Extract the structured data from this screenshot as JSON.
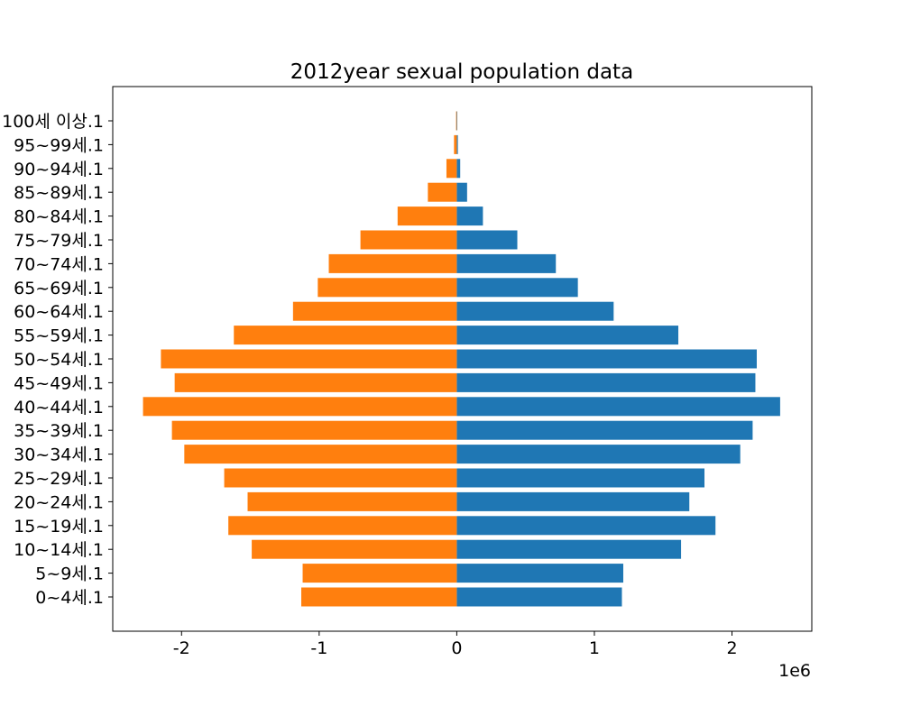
{
  "chart_data": {
    "type": "bar",
    "orientation": "horizontal",
    "layout": "population-pyramid",
    "title": "2012year sexual population data",
    "xlabel": "",
    "ylabel": "",
    "x_offset_label": "1e6",
    "xlim": [
      -2500000,
      2580000
    ],
    "x_ticks": [
      -2000000,
      -1000000,
      0,
      1000000,
      2000000
    ],
    "x_tick_labels": [
      "-2",
      "-1",
      "0",
      "1",
      "2"
    ],
    "grid": false,
    "legend": "none",
    "categories": [
      "0~4세.1",
      "5~9세.1",
      "10~14세.1",
      "15~19세.1",
      "20~24세.1",
      "25~29세.1",
      "30~34세.1",
      "35~39세.1",
      "40~44세.1",
      "45~49세.1",
      "50~54세.1",
      "55~59세.1",
      "60~64세.1",
      "65~69세.1",
      "70~74세.1",
      "75~79세.1",
      "80~84세.1",
      "85~89세.1",
      "90~94세.1",
      "95~99세.1",
      "100세 이상.1"
    ],
    "series": [
      {
        "color": "#1f77b4",
        "values": [
          1200000,
          1210000,
          1630000,
          1880000,
          1690000,
          1800000,
          2060000,
          2150000,
          2350000,
          2170000,
          2180000,
          1610000,
          1140000,
          880000,
          720000,
          440000,
          190000,
          75000,
          25000,
          8000,
          2000
        ]
      },
      {
        "color": "#ff7f0e",
        "values": [
          -1130000,
          -1120000,
          -1490000,
          -1660000,
          -1520000,
          -1690000,
          -1980000,
          -2070000,
          -2280000,
          -2050000,
          -2150000,
          -1620000,
          -1190000,
          -1010000,
          -930000,
          -700000,
          -430000,
          -210000,
          -75000,
          -20000,
          -5000
        ]
      }
    ]
  }
}
